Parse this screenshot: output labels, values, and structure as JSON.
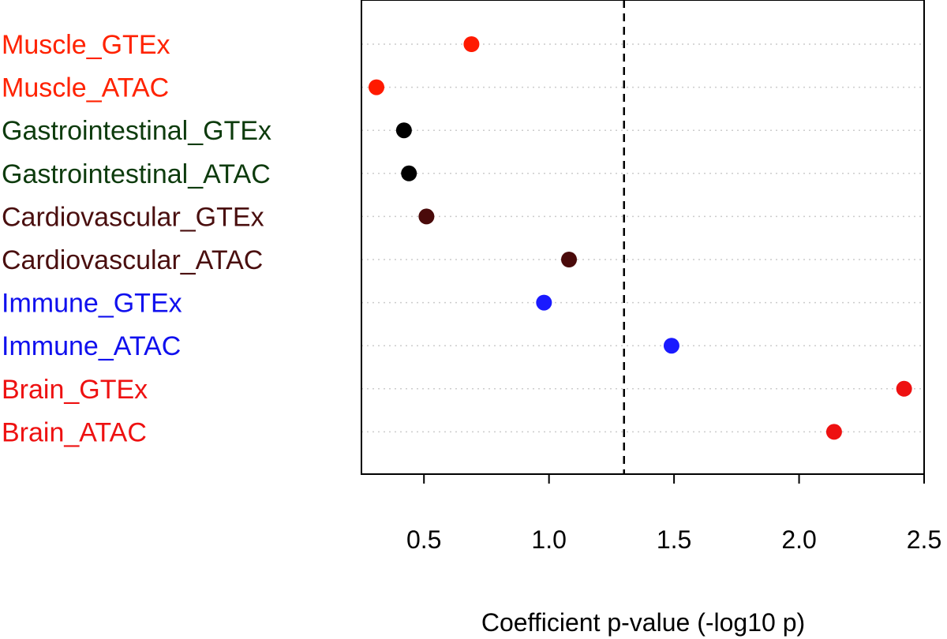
{
  "chart_data": {
    "type": "scatter",
    "title": "",
    "xlabel": "Coefficient p-value (-log10 p)",
    "ylabel": "",
    "xlim": [
      0.25,
      2.5
    ],
    "xticks": [
      0.5,
      1.0,
      1.5,
      2.0,
      2.5
    ],
    "xtick_labels": [
      "0.5",
      "1.0",
      "1.5",
      "2.0",
      "2.5"
    ],
    "threshold": 1.3,
    "grid": "horizontal-dotted",
    "categories": [
      "Muscle_GTEx",
      "Muscle_ATAC",
      "Gastrointestinal_GTEx",
      "Gastrointestinal_ATAC",
      "Cardiovascular_GTEx",
      "Cardiovascular_ATAC",
      "Immune_GTEx",
      "Immune_ATAC",
      "Brain_GTEx",
      "Brain_ATAC"
    ],
    "values": [
      0.69,
      0.31,
      0.42,
      0.44,
      0.51,
      1.08,
      0.98,
      1.49,
      2.42,
      2.14
    ],
    "colors": [
      "#ff2200",
      "#ff2200",
      "#0d3b0d",
      "#0d3b0d",
      "#4a0f0f",
      "#4a0f0f",
      "#1010ee",
      "#1010ee",
      "#ee1111",
      "#ee1111"
    ],
    "point_colors": [
      "#ff1a00",
      "#ff1a00",
      "#000000",
      "#000000",
      "#4a0a0a",
      "#4a0a0a",
      "#1a1aff",
      "#1a1aff",
      "#ee1111",
      "#ee1111"
    ]
  }
}
